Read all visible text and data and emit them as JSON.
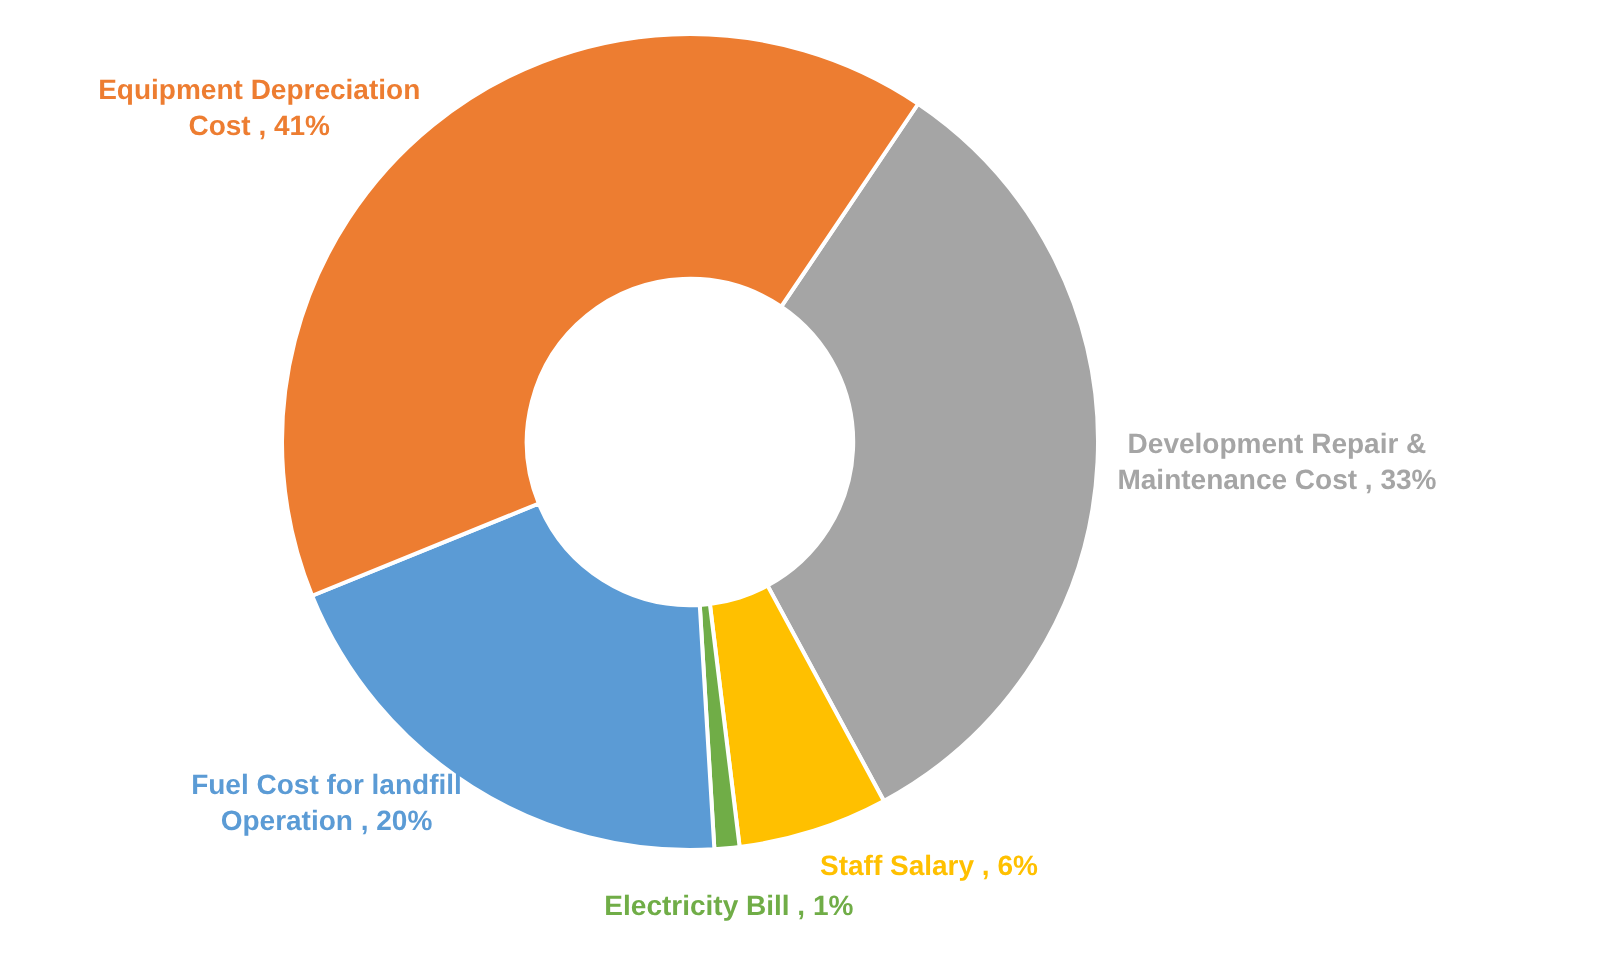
{
  "chart_data": {
    "type": "donut",
    "categories": [
      "Development Repair & Maintenance Cost",
      "Staff Salary",
      "Electricity Bill",
      "Fuel Cost for landfill Operation",
      "Equipment Depreciation Cost"
    ],
    "values": [
      33,
      6,
      1,
      20,
      41
    ],
    "value_labels": [
      ", 33%",
      ", 6%",
      ", 1%",
      ", 20%",
      ", 41%"
    ],
    "colors": [
      "#a5a5a5",
      "#ffc000",
      "#70ad47",
      "#5b9bd5",
      "#ed7d31"
    ],
    "legend": false
  }
}
